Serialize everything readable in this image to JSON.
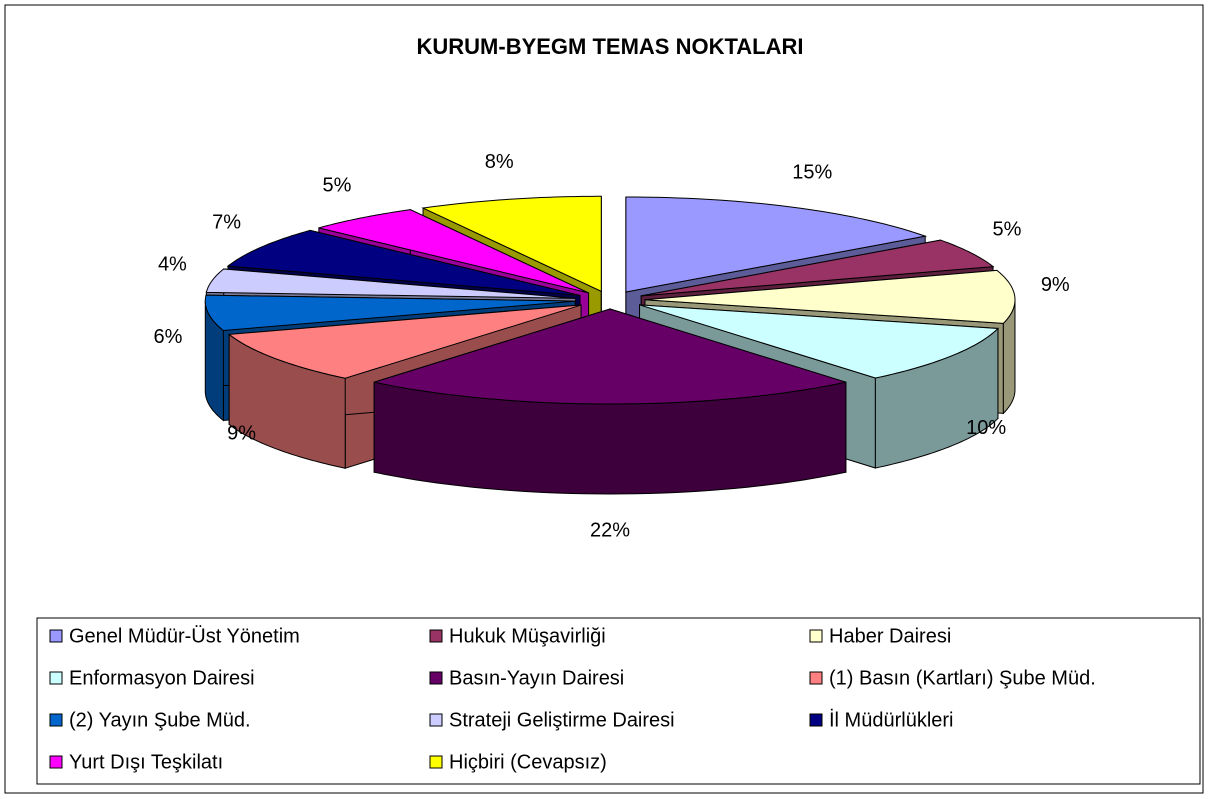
{
  "chart_data": {
    "type": "pie",
    "title": "KURUM-BYEGM TEMAS NOKTALARI",
    "categories": [
      "Genel Müdür-Üst Yönetim",
      "Hukuk Müşavirliği",
      "Haber Dairesi",
      "Enformasyon Dairesi",
      "Basın-Yayın Dairesi",
      "(1) Basın (Kartları) Şube Müd.",
      "(2) Yayın Şube Müd.",
      "Strateji Geliştirme Dairesi",
      "İl Müdürlükleri",
      "Yurt Dışı Teşkilatı",
      "Hiçbiri (Cevapsız)"
    ],
    "values": [
      15,
      5,
      9,
      10,
      22,
      9,
      6,
      4,
      7,
      5,
      8
    ],
    "value_labels": [
      "15%",
      "5%",
      "9%",
      "10%",
      "22%",
      "9%",
      "6%",
      "4%",
      "7%",
      "5%",
      "8%"
    ],
    "colors": [
      "#9999ff",
      "#993366",
      "#ffffcc",
      "#ccffff",
      "#660066",
      "#ff8080",
      "#0066cc",
      "#ccccff",
      "#000080",
      "#ff00ff",
      "#ffff00"
    ],
    "legend": "bottom"
  }
}
